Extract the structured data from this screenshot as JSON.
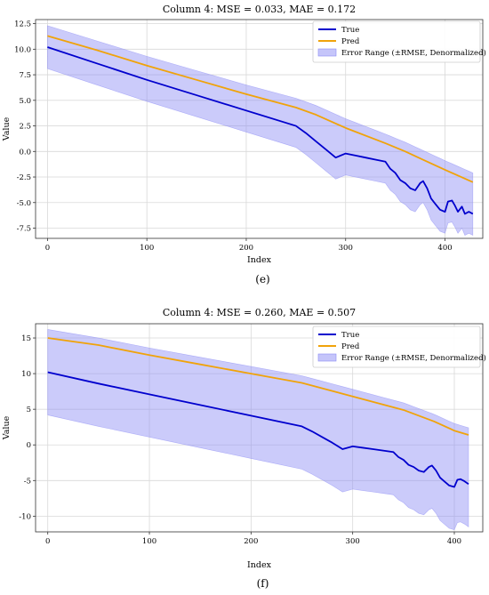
{
  "colors": {
    "true": "#0000cd",
    "pred": "#f0a30a",
    "band": "#8c8cf5",
    "grid": "#d9d9d9",
    "axis": "#333333"
  },
  "chart_data": [
    {
      "type": "line",
      "title": "Column 4: MSE = 0.033, MAE = 0.172",
      "xlabel": "Index",
      "ylabel": "Value",
      "xlim": [
        -12,
        438
      ],
      "ylim": [
        -8.5,
        12.9
      ],
      "xticks": [
        0,
        100,
        200,
        300,
        400
      ],
      "yticks": [
        -7.5,
        -5.0,
        -2.5,
        0.0,
        2.5,
        5.0,
        7.5,
        10.0,
        12.5
      ],
      "ytick_labels": [
        "-7.5",
        "-5.0",
        "-2.5",
        "0.0",
        "2.5",
        "5.0",
        "7.5",
        "10.0",
        "12.5"
      ],
      "grid": true,
      "legend": "top-right",
      "caption": "(e)",
      "error_half_width": 2.1,
      "series": [
        {
          "name": "True",
          "role": "true",
          "x": [
            0,
            50,
            100,
            150,
            200,
            250,
            260,
            270,
            280,
            290,
            300,
            310,
            320,
            330,
            340,
            345,
            350,
            355,
            360,
            365,
            370,
            375,
            378,
            382,
            386,
            390,
            395,
            400,
            403,
            407,
            410,
            413,
            417,
            420,
            424,
            428
          ],
          "y": [
            10.2,
            8.6,
            7.0,
            5.5,
            4.0,
            2.5,
            1.8,
            1.0,
            0.2,
            -0.6,
            -0.2,
            -0.4,
            -0.6,
            -0.8,
            -1.0,
            -1.7,
            -2.1,
            -2.8,
            -3.1,
            -3.6,
            -3.8,
            -3.1,
            -2.9,
            -3.6,
            -4.6,
            -5.1,
            -5.7,
            -5.9,
            -4.9,
            -4.8,
            -5.3,
            -5.9,
            -5.4,
            -6.1,
            -5.9,
            -6.1
          ]
        },
        {
          "name": "Pred",
          "role": "pred",
          "x": [
            0,
            50,
            100,
            150,
            200,
            250,
            270,
            300,
            340,
            360,
            380,
            400,
            428
          ],
          "y": [
            11.3,
            9.9,
            8.4,
            7.0,
            5.6,
            4.3,
            3.6,
            2.3,
            0.8,
            0.0,
            -0.9,
            -1.8,
            -3.0
          ]
        }
      ],
      "band_name": "Error Range (±RMSE, Denormalized)"
    },
    {
      "type": "line",
      "title": "Column 4: MSE = 0.260, MAE = 0.507",
      "xlabel": "Index",
      "ylabel": "Value",
      "xlim": [
        -12,
        428
      ],
      "ylim": [
        -12.2,
        17.0
      ],
      "xticks": [
        0,
        100,
        200,
        300,
        400
      ],
      "yticks": [
        -10,
        -5,
        0,
        5,
        10,
        15
      ],
      "ytick_labels": [
        "-10",
        "-5",
        "0",
        "5",
        "10",
        "15"
      ],
      "grid": true,
      "legend": "top-right",
      "caption": "(f)",
      "error_half_width": 6.0,
      "series": [
        {
          "name": "True",
          "role": "true",
          "x": [
            0,
            50,
            100,
            150,
            200,
            250,
            260,
            270,
            280,
            290,
            300,
            310,
            320,
            330,
            340,
            345,
            350,
            355,
            360,
            365,
            370,
            375,
            378,
            382,
            386,
            390,
            395,
            400,
            403,
            406,
            410,
            414
          ],
          "y": [
            10.2,
            8.6,
            7.1,
            5.6,
            4.1,
            2.6,
            1.9,
            1.1,
            0.3,
            -0.6,
            -0.2,
            -0.4,
            -0.6,
            -0.8,
            -1.0,
            -1.7,
            -2.1,
            -2.8,
            -3.1,
            -3.6,
            -3.8,
            -3.1,
            -2.9,
            -3.6,
            -4.6,
            -5.1,
            -5.7,
            -5.9,
            -4.9,
            -4.8,
            -5.1,
            -5.5
          ]
        },
        {
          "name": "Pred",
          "role": "pred",
          "x": [
            0,
            50,
            100,
            150,
            200,
            250,
            300,
            350,
            380,
            400,
            414
          ],
          "y": [
            15.0,
            14.0,
            12.6,
            11.3,
            10.0,
            8.7,
            6.8,
            4.9,
            3.3,
            2.0,
            1.4
          ]
        }
      ],
      "band_name": "Error Range (±RMSE, Denormalized)"
    }
  ]
}
